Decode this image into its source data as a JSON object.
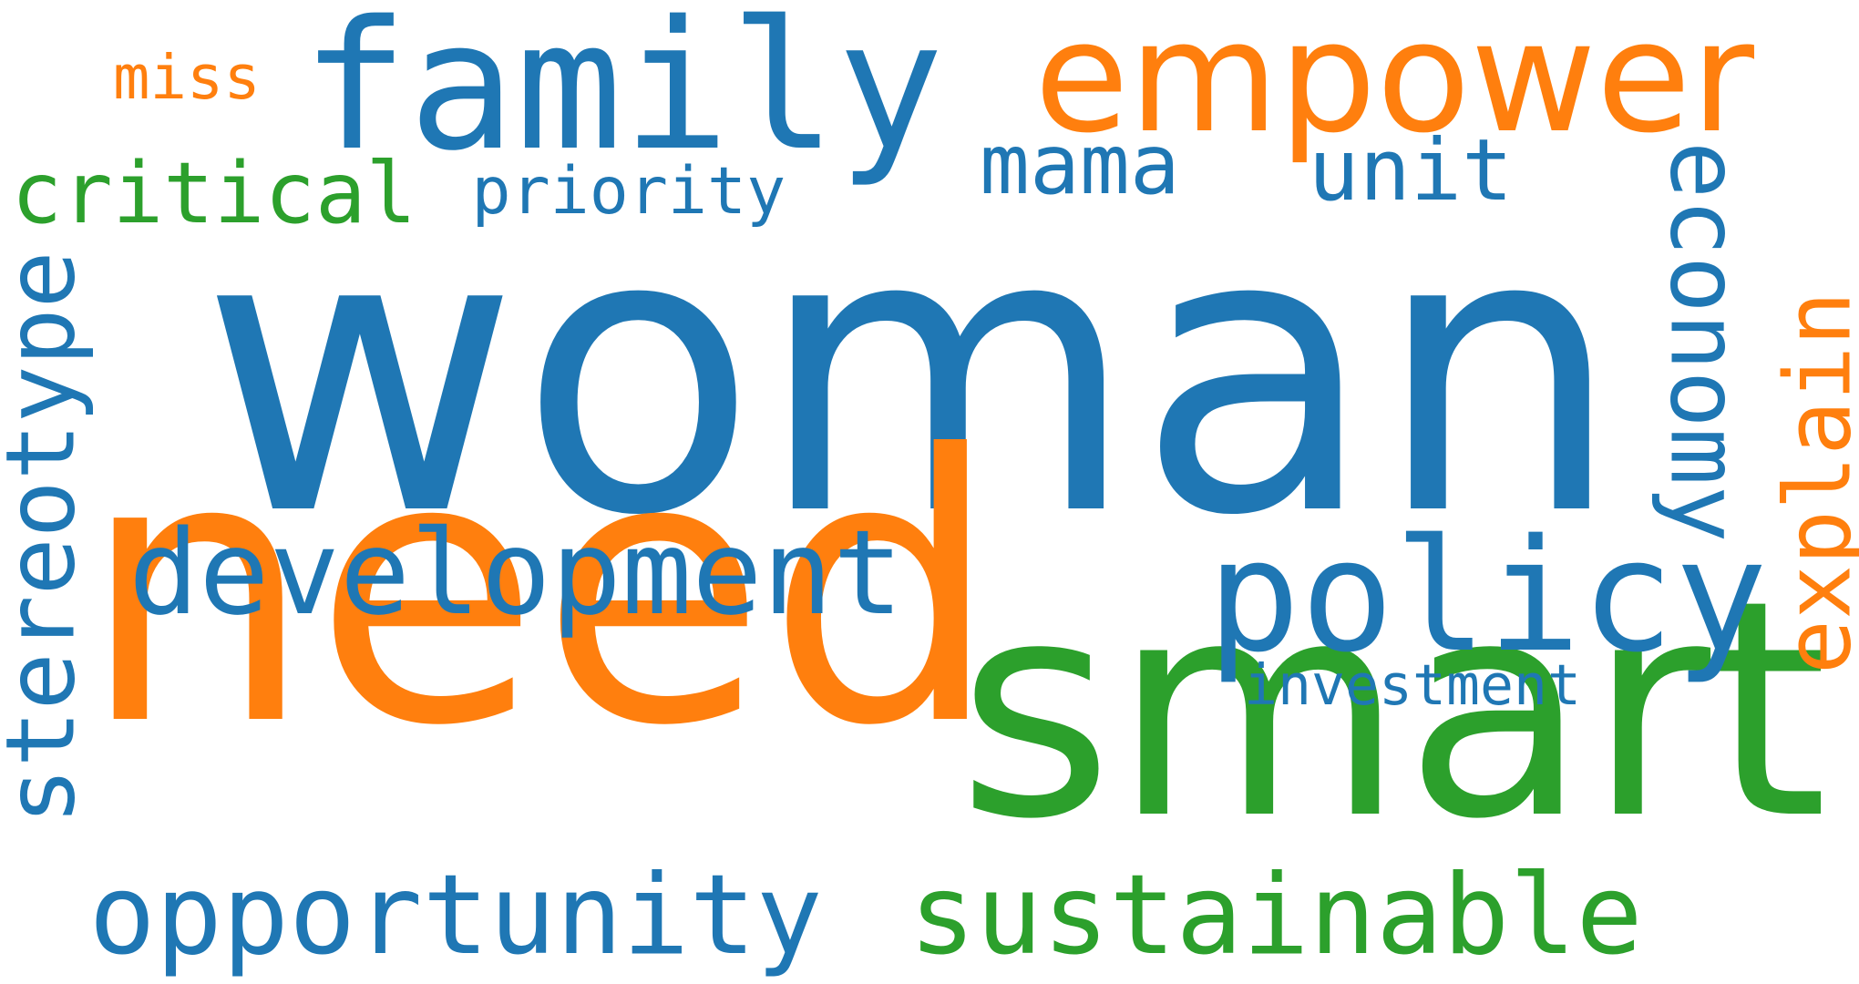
{
  "colors": {
    "blue": "#1f77b4",
    "orange": "#ff7f0e",
    "green": "#2ca02c"
  },
  "words": [
    {
      "text": "woman",
      "color": "blue"
    },
    {
      "text": "need",
      "color": "orange"
    },
    {
      "text": "smart",
      "color": "green"
    },
    {
      "text": "family",
      "color": "blue"
    },
    {
      "text": "empower",
      "color": "orange"
    },
    {
      "text": "policy",
      "color": "blue"
    },
    {
      "text": "development",
      "color": "blue"
    },
    {
      "text": "opportunity",
      "color": "blue"
    },
    {
      "text": "sustainable",
      "color": "green"
    },
    {
      "text": "stereotype",
      "color": "blue"
    },
    {
      "text": "economy",
      "color": "blue"
    },
    {
      "text": "explain",
      "color": "orange"
    },
    {
      "text": "critical",
      "color": "green"
    },
    {
      "text": "unit",
      "color": "blue"
    },
    {
      "text": "mama",
      "color": "blue"
    },
    {
      "text": "priority",
      "color": "blue"
    },
    {
      "text": "investment",
      "color": "blue"
    },
    {
      "text": "miss",
      "color": "orange"
    }
  ]
}
